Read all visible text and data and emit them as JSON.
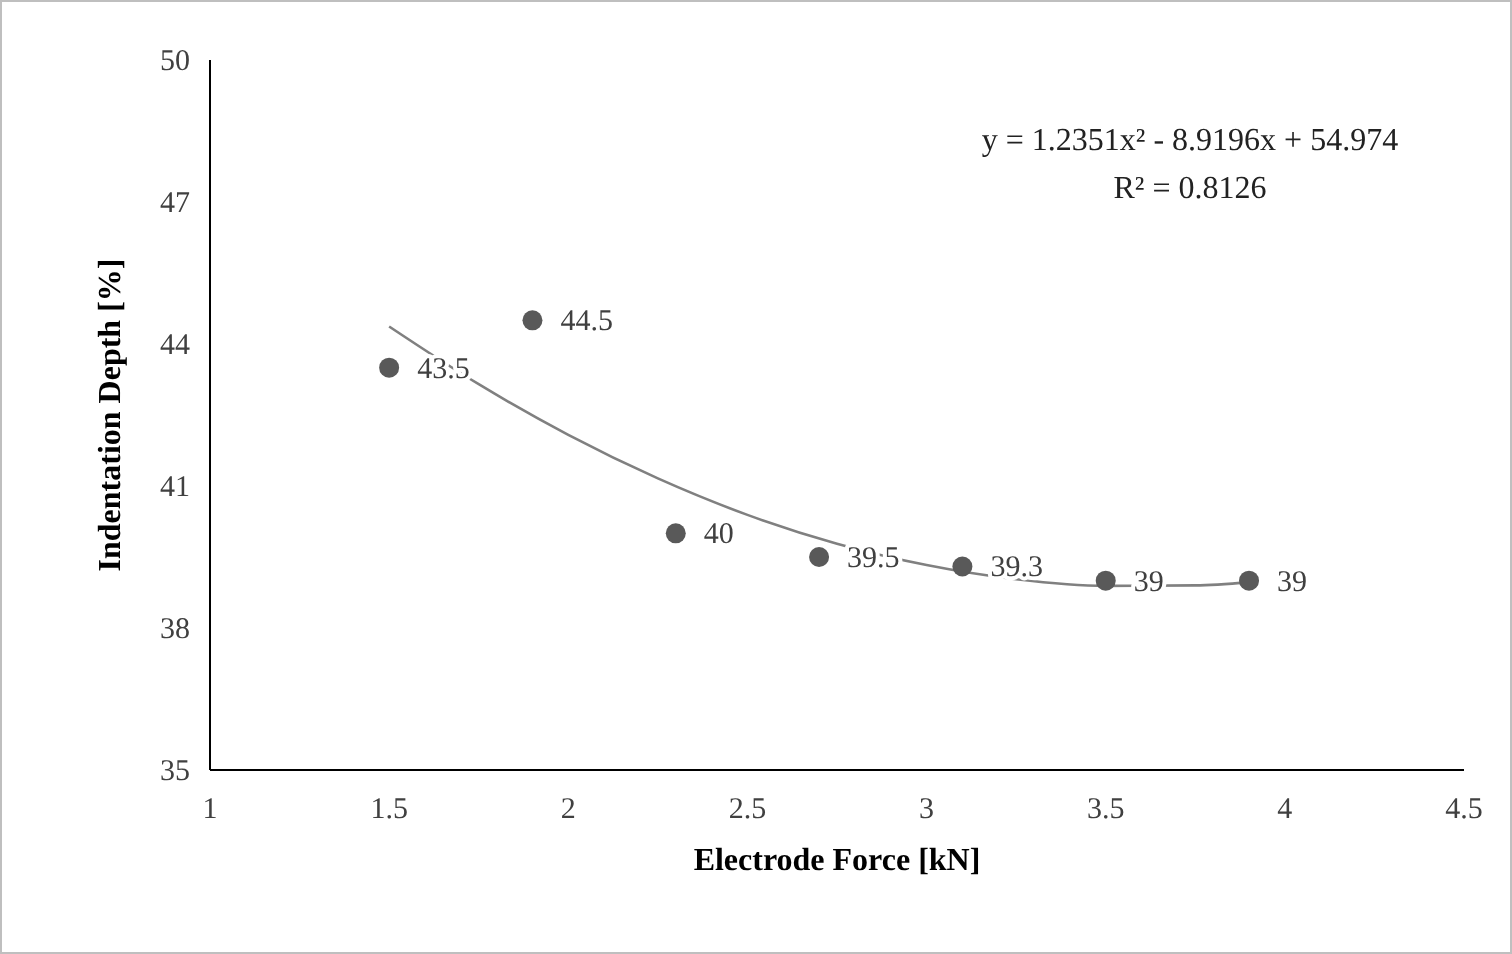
{
  "chart_data": {
    "type": "scatter",
    "xlabel": "Electrode Force [kN]",
    "ylabel": "Indentation Depth [%]",
    "xlim": [
      1,
      4.5
    ],
    "xticks": [
      1,
      1.5,
      2,
      2.5,
      3,
      3.5,
      4,
      4.5
    ],
    "ylim": [
      35,
      50
    ],
    "yticks": [
      35,
      38,
      41,
      44,
      47,
      50
    ],
    "grid": false,
    "marker": "circle",
    "series": [
      {
        "color": "#595959",
        "x": [
          1.5,
          1.9,
          2.3,
          2.7,
          3.1,
          3.5,
          3.9
        ],
        "values": [
          43.5,
          44.5,
          40,
          39.5,
          39.3,
          39,
          39
        ],
        "value_labels": [
          "43.5",
          "44.5",
          "40",
          "39.5",
          "39.3",
          "39",
          "39"
        ]
      },
      {
        "type": "line",
        "color": "#808080",
        "line_style": "solid",
        "marker": "none",
        "x": [
          1.5,
          1.75,
          2,
          2.25,
          2.5,
          2.75,
          3,
          3.25,
          3.5,
          3.75,
          3.9
        ],
        "values": [
          44.37,
          43.15,
          42.08,
          41.16,
          40.39,
          39.78,
          39.33,
          39.03,
          38.89,
          38.9,
          38.97
        ]
      }
    ],
    "annotations": [
      "y = 1.2351x² - 8.9196x + 54.974",
      "R² = 0.8126"
    ]
  }
}
